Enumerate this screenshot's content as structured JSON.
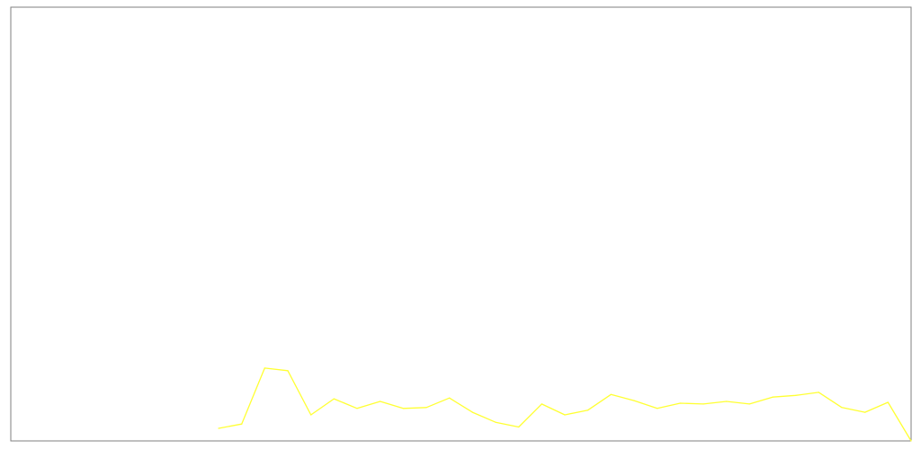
{
  "chart_data": {
    "type": "line",
    "title": "",
    "xlabel": "",
    "ylabel": "",
    "grid": false,
    "x": [
      9,
      10,
      11,
      12,
      13,
      14,
      15,
      16,
      17,
      18,
      19,
      20,
      21,
      22,
      23,
      24,
      25,
      26,
      27,
      28,
      29,
      30,
      31,
      32,
      33,
      34,
      35,
      36,
      37,
      38,
      39
    ],
    "xlim": [
      0,
      39
    ],
    "ylim": [
      0,
      100
    ],
    "series": [
      {
        "color": "#ffff33",
        "values": [
          2.9,
          3.9,
          16.8,
          16.2,
          6.0,
          9.7,
          7.5,
          9.1,
          7.5,
          7.7,
          9.9,
          6.6,
          4.3,
          3.2,
          8.5,
          6.0,
          7.1,
          10.7,
          9.3,
          7.5,
          8.7,
          8.5,
          9.1,
          8.5,
          10.1,
          10.5,
          11.2,
          7.7,
          6.6,
          8.9,
          0.0
        ]
      }
    ]
  }
}
